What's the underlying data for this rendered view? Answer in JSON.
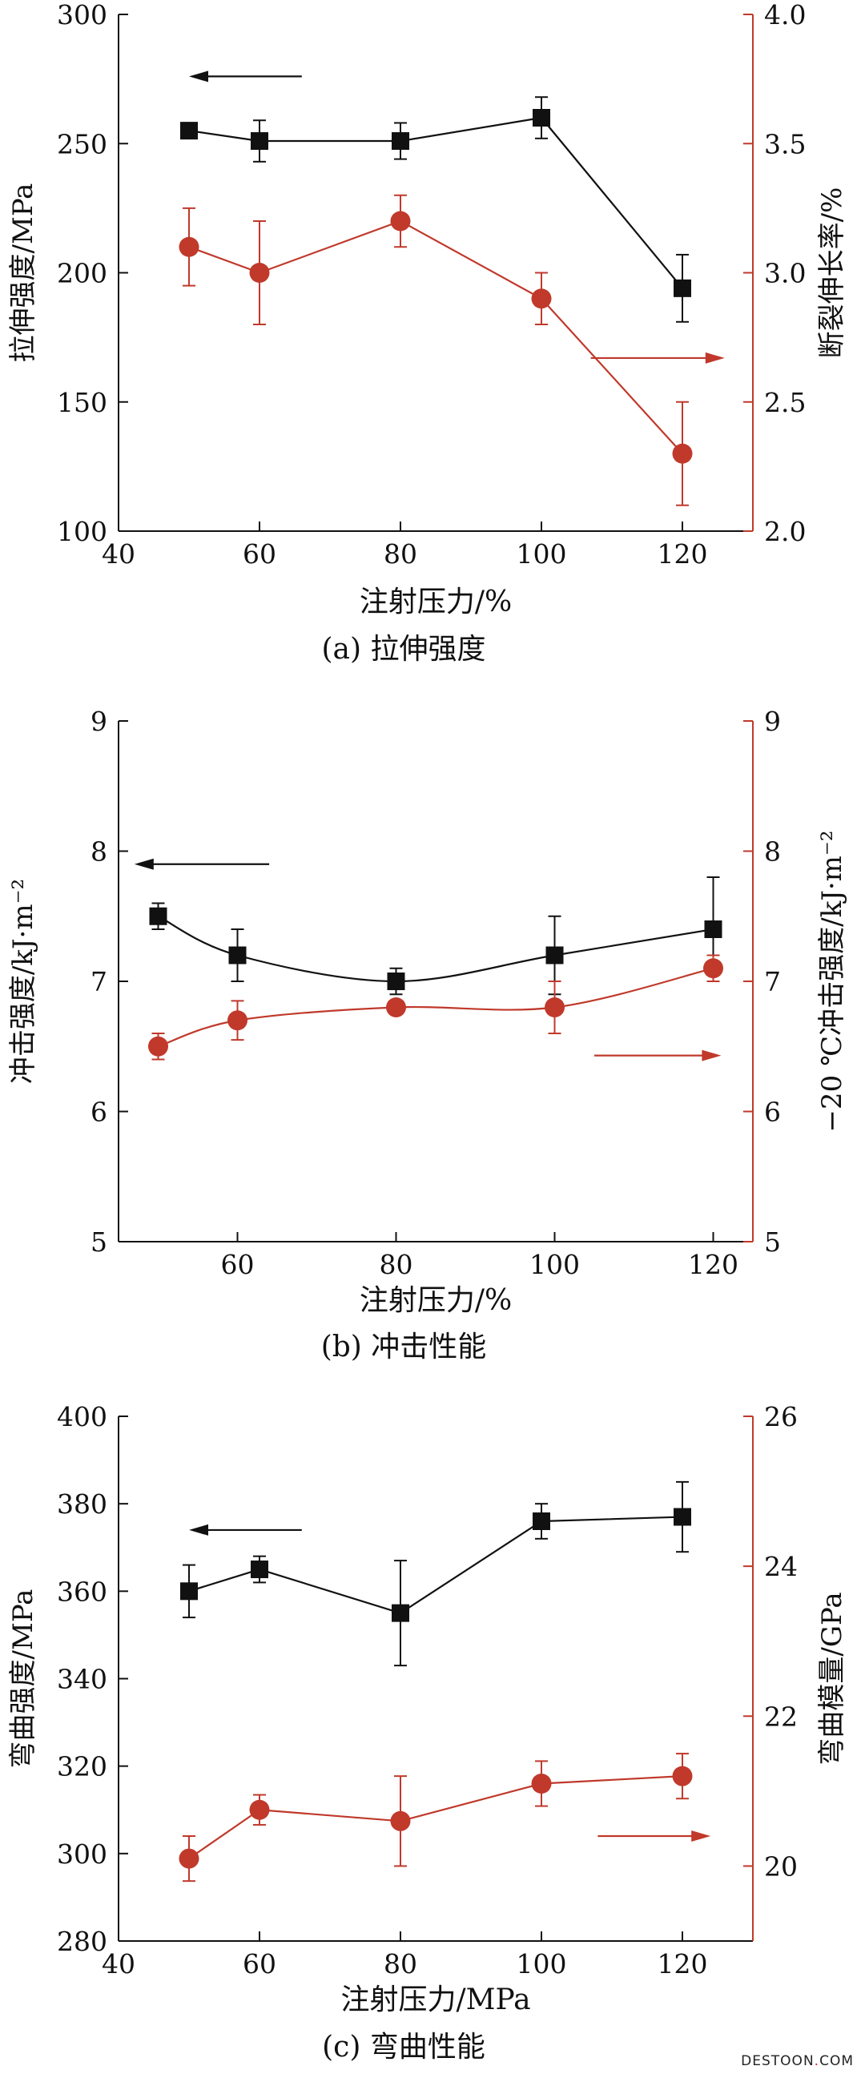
{
  "colors": {
    "left": "#111111",
    "right": "#c0392b",
    "axis_right": "#c0392b"
  },
  "watermark": {
    "text": "DESTOON",
    "dot": ".",
    "suffix": "COM"
  },
  "chart_data": [
    {
      "id": "a",
      "type": "line",
      "caption": "(a) 拉伸强度",
      "xlabel": "注射压力/%",
      "ylabel_left": "拉伸强度/MPa",
      "ylabel_right": "断裂伸长率/%",
      "xlim": [
        40,
        130
      ],
      "xticks": [
        40,
        60,
        80,
        100,
        120
      ],
      "ylim_left": [
        100,
        300
      ],
      "yticks_left": [
        100,
        150,
        200,
        250,
        300
      ],
      "ylim_right": [
        2.0,
        4.0
      ],
      "yticks_right": [
        "2.0",
        "2.5",
        "3.0",
        "3.5",
        "4.0"
      ],
      "smooth": false,
      "series": [
        {
          "axis": "left",
          "marker": "square",
          "x": [
            50,
            60,
            80,
            100,
            120
          ],
          "y": [
            255,
            251,
            251,
            260,
            194
          ],
          "err": [
            3,
            8,
            7,
            8,
            13
          ]
        },
        {
          "axis": "right",
          "marker": "circle",
          "x": [
            50,
            60,
            80,
            100,
            120
          ],
          "y": [
            3.1,
            3.0,
            3.2,
            2.9,
            2.3
          ],
          "err": [
            0.15,
            0.2,
            0.1,
            0.1,
            0.2
          ]
        }
      ],
      "arrows": [
        {
          "axis": "left",
          "dir": "left",
          "x1": 66,
          "x2": 50,
          "y": 276
        },
        {
          "axis": "right",
          "dir": "right",
          "x1": 107,
          "x2": 126,
          "y": 2.67
        }
      ]
    },
    {
      "id": "b",
      "type": "line",
      "caption": "(b) 冲击性能",
      "xlabel": "注射压力/%",
      "ylabel_left": "冲击强度/kJ·m⁻²",
      "ylabel_right": "−20 ℃冲击强度/kJ·m⁻²",
      "xlim": [
        45,
        125
      ],
      "xticks": [
        60,
        80,
        100,
        120
      ],
      "ylim_left": [
        5,
        9
      ],
      "yticks_left": [
        5,
        6,
        7,
        8,
        9
      ],
      "ylim_right": [
        5,
        9
      ],
      "yticks_right": [
        "5",
        "6",
        "7",
        "8",
        "9"
      ],
      "smooth": true,
      "series": [
        {
          "axis": "left",
          "marker": "square",
          "x": [
            50,
            60,
            80,
            100,
            120
          ],
          "y": [
            7.5,
            7.2,
            7.0,
            7.2,
            7.4
          ],
          "err": [
            0.1,
            0.2,
            0.1,
            0.3,
            0.4
          ]
        },
        {
          "axis": "right",
          "marker": "circle",
          "x": [
            50,
            60,
            80,
            100,
            120
          ],
          "y": [
            6.5,
            6.7,
            6.8,
            6.8,
            7.1
          ],
          "err": [
            0.1,
            0.15,
            0.05,
            0.2,
            0.1
          ]
        }
      ],
      "arrows": [
        {
          "axis": "left",
          "dir": "left",
          "x1": 64,
          "x2": 47,
          "y": 7.9
        },
        {
          "axis": "right",
          "dir": "right",
          "x1": 105,
          "x2": 121,
          "y": 6.43
        }
      ]
    },
    {
      "id": "c",
      "type": "line",
      "caption": "(c) 弯曲性能",
      "xlabel": "注射压力/MPa",
      "ylabel_left": "弯曲强度/MPa",
      "ylabel_right": "弯曲模量/GPa",
      "xlim": [
        40,
        130
      ],
      "xticks": [
        40,
        60,
        80,
        100,
        120
      ],
      "ylim_left": [
        280,
        400
      ],
      "yticks_left": [
        280,
        300,
        320,
        340,
        360,
        380,
        400
      ],
      "ylim_right": [
        19,
        26
      ],
      "yticks_right": [
        "20",
        "22",
        "24",
        "26"
      ],
      "smooth": false,
      "series": [
        {
          "axis": "left",
          "marker": "square",
          "x": [
            50,
            60,
            80,
            100,
            120
          ],
          "y": [
            360,
            365,
            355,
            376,
            377
          ],
          "err": [
            6,
            3,
            12,
            4,
            8
          ]
        },
        {
          "axis": "right",
          "marker": "circle",
          "x": [
            50,
            60,
            80,
            100,
            120
          ],
          "y": [
            20.1,
            20.75,
            20.6,
            21.1,
            21.2
          ],
          "err": [
            0.3,
            0.2,
            0.6,
            0.3,
            0.3
          ]
        }
      ],
      "arrows": [
        {
          "axis": "left",
          "dir": "left",
          "x1": 66,
          "x2": 50,
          "y": 374
        },
        {
          "axis": "right",
          "dir": "right",
          "x1": 108,
          "x2": 124,
          "y": 20.4
        }
      ]
    }
  ]
}
